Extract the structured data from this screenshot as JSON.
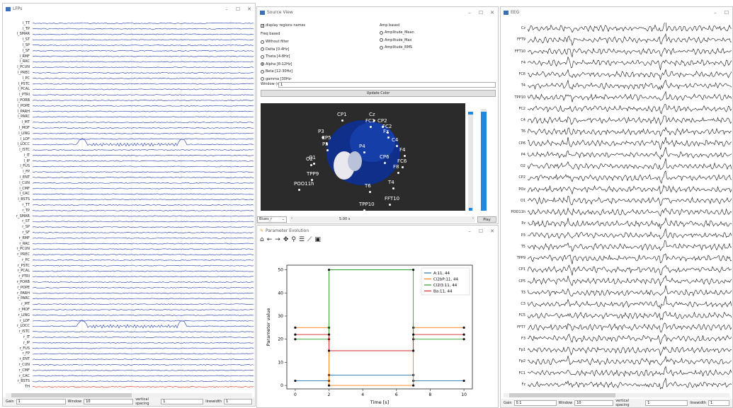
{
  "lfp_window": {
    "title": "LFPs",
    "window_buttons": [
      "–",
      "☐",
      "✕"
    ],
    "channels": [
      "l_TT",
      "l_TP",
      "l_SMAR",
      "l_ST",
      "l_SP",
      "l_SF",
      "l_RMF",
      "l_RAC",
      "l_PCUN",
      "l_PREC",
      "l_PC",
      "l_PSTC",
      "l_PCAL",
      "l_PTRI",
      "l_PORB",
      "l_POPE",
      "l_PARH",
      "l_PARC",
      "l_MT",
      "l_MOF",
      "l_LING",
      "l_LOF",
      "l_LOCC",
      "l_ISTC",
      "l_IT",
      "l_IP",
      "l_FUS",
      "l_FP",
      "l_ENT",
      "l_CUN",
      "l_CMF",
      "l_CAC",
      "l_BSTS",
      "r_TT",
      "r_TP",
      "r_SMAR",
      "r_ST",
      "r_SP",
      "r_SF",
      "r_RMF",
      "r_RAC",
      "r_PCUN",
      "r_PREC",
      "r_PC",
      "r_PSTC",
      "r_PCAL",
      "r_PTRI",
      "r_PORB",
      "r_POPE",
      "r_PARH",
      "r_PARC",
      "r_MT",
      "r_MOF",
      "r_LING",
      "r_LOF",
      "r_LOCC",
      "r_ISTC",
      "r_IT",
      "r_IP",
      "r_FUS",
      "r_FP",
      "r_ENT",
      "r_CUN",
      "r_CMF",
      "r_CAC",
      "r_BSTS",
      "TH"
    ],
    "trace_color": "#3b4fb5",
    "th_color": "#e0442e",
    "gain_label": "Gain",
    "gain_value": "1",
    "window_label": "Window",
    "window_value": "10",
    "spacing_label": "vertical spacing",
    "spacing_value": "1",
    "linewidth_label": "linewidth",
    "linewidth_value": "1"
  },
  "source_window": {
    "title": "Source View",
    "window_buttons": [
      "–",
      "☐",
      "✕"
    ],
    "display_names_label": "display regions names",
    "freq_header": "Freq based",
    "freq_options": [
      "Without filter",
      "Delta [0-4Hz]",
      "Theta [4-8Hz]",
      "Alpha [8-12Hz]",
      "Beta [12-30Hz]",
      "gamma [30Hz-"
    ],
    "freq_selected": 3,
    "amp_header": "Amp based",
    "amp_options": [
      "Amplitude_Mean",
      "Amplitude_Max",
      "Amplitude_RMS"
    ],
    "window_label": "Window (s):",
    "window_value": "1",
    "update_label": "Update Color",
    "brain_labels": [
      "CP1",
      "Cz",
      "FC1",
      "CP2",
      "FC2",
      "Fz",
      "P3",
      "CP5",
      "P5",
      "C4",
      "P4",
      "F4",
      "CP6",
      "FC6",
      "F8",
      "O1",
      "O2",
      "TPP9",
      "POO11h",
      "T6",
      "T4",
      "FFT10",
      "TPP10"
    ],
    "colormap_value": "Blues_r",
    "time_value": "5.00 s",
    "play_label": "Play"
  },
  "param_window": {
    "title": "Parameter Evolution",
    "window_buttons": [
      "–",
      "☐",
      "✕"
    ],
    "toolbar_icons": [
      "home-icon",
      "back-icon",
      "forward-icon",
      "pan-icon",
      "zoom-icon",
      "configure-icon",
      "edit-axis-icon",
      "save-icon"
    ]
  },
  "chart_data": {
    "type": "line",
    "xlabel": "Time [s]",
    "ylabel": "Parameter value",
    "xlim": [
      -0.5,
      10.5
    ],
    "ylim": [
      -1.5,
      52
    ],
    "xticks": [
      0,
      2,
      4,
      6,
      8,
      10
    ],
    "yticks": [
      0,
      10,
      20,
      30,
      40,
      50
    ],
    "legend_position": "upper right",
    "series": [
      {
        "name": "A:11, 44",
        "color": "#1f77b4",
        "x": [
          0,
          2,
          2,
          7,
          7,
          10
        ],
        "y": [
          2,
          2,
          4.5,
          4.5,
          2,
          2
        ]
      },
      {
        "name": "Cl2bP:11, 44",
        "color": "#ff7f0e",
        "x": [
          0,
          2,
          2,
          7,
          7,
          10
        ],
        "y": [
          25,
          25,
          0,
          0,
          25,
          25
        ]
      },
      {
        "name": "Cl2l3:11, 44",
        "color": "#2ca02c",
        "x": [
          0,
          2,
          2,
          7,
          7,
          10
        ],
        "y": [
          20,
          20,
          50,
          50,
          20,
          20
        ]
      },
      {
        "name": "Ba:11, 44",
        "color": "#d62728",
        "x": [
          0,
          2,
          2,
          7,
          7,
          10
        ],
        "y": [
          22,
          22,
          15,
          15,
          22,
          22
        ]
      }
    ]
  },
  "eeg_window": {
    "title": "EEG",
    "window_buttons": [
      "–",
      "☐"
    ],
    "channels": [
      "Cz",
      "FFT9",
      "FFT10",
      "F4",
      "FC6",
      "T4",
      "TPP10",
      "FC2",
      "C4",
      "T6",
      "CP6",
      "P4",
      "O2",
      "CP2",
      "POz",
      "O1",
      "POO11h",
      "Pz",
      "P3",
      "T5",
      "TPP9",
      "CP1",
      "CP5",
      "T3",
      "C3",
      "FC5",
      "FFT7",
      "F3",
      "Fp1",
      "Fp2",
      "FC1",
      "Fz"
    ],
    "gain_label": "Gain",
    "gain_value": "0.1",
    "window_label": "Window",
    "window_value": "10",
    "spacing_label": "vertical spacing",
    "spacing_value": "1",
    "linewidth_label": "linewidth",
    "linewidth_value": "1"
  }
}
